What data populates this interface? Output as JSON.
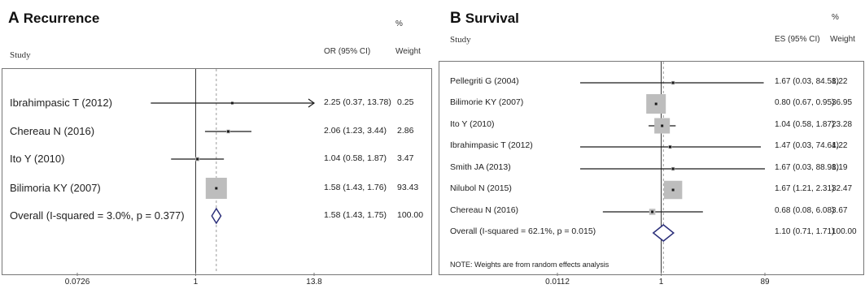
{
  "chart_data": [
    {
      "type": "forest",
      "panel_letter": "A",
      "title": "Recurrence",
      "percent_symbol": "%",
      "study_header": "Study",
      "effect_header": "OR (95% CI)",
      "weight_header": "Weight",
      "x_ticks": [
        "0.0726",
        "1",
        "13.8"
      ],
      "xlim": [
        0.0726,
        13.8
      ],
      "scale": "log",
      "null_value": 1,
      "overall_reference": 1.58,
      "studies": [
        {
          "name": "Ibrahimpasic T (2012)",
          "estimate": 2.25,
          "lower": 0.37,
          "upper": 13.78,
          "ci_text": "2.25 (0.37, 13.78)",
          "weight": "0.25",
          "weight_value": 0.25,
          "arrow_right": true
        },
        {
          "name": "Chereau N (2016)",
          "estimate": 2.06,
          "lower": 1.23,
          "upper": 3.44,
          "ci_text": "2.06 (1.23, 3.44)",
          "weight": "2.86",
          "weight_value": 2.86
        },
        {
          "name": "Ito Y (2010)",
          "estimate": 1.04,
          "lower": 0.58,
          "upper": 1.87,
          "ci_text": "1.04 (0.58, 1.87)",
          "weight": "3.47",
          "weight_value": 3.47
        },
        {
          "name": "Bilimoria KY (2007)",
          "estimate": 1.58,
          "lower": 1.43,
          "upper": 1.76,
          "ci_text": "1.58 (1.43, 1.76)",
          "weight": "93.43",
          "weight_value": 93.43
        }
      ],
      "overall": {
        "name": "Overall  (I-squared = 3.0%, p = 0.377)",
        "estimate": 1.58,
        "lower": 1.43,
        "upper": 1.75,
        "ci_text": "1.58 (1.43, 1.75)",
        "weight": "100.00"
      }
    },
    {
      "type": "forest",
      "panel_letter": "B",
      "title": "Survival",
      "percent_symbol": "%",
      "study_header": "Study",
      "effect_header": "ES (95% CI)",
      "weight_header": "Weight",
      "x_ticks": [
        "0.0112",
        "1",
        "89"
      ],
      "xlim": [
        0.0112,
        89
      ],
      "scale": "log",
      "null_value": 1,
      "overall_reference": 1.1,
      "studies": [
        {
          "name": "Pellegriti G (2004)",
          "estimate": 1.67,
          "lower": 0.03,
          "upper": 84.58,
          "ci_text": "1.67 (0.03, 84.58)",
          "weight": "1.22",
          "weight_value": 1.22
        },
        {
          "name": "Bilimorie KY (2007)",
          "estimate": 0.8,
          "lower": 0.67,
          "upper": 0.95,
          "ci_text": "0.80 (0.67, 0.95)",
          "weight": "36.95",
          "weight_value": 36.95
        },
        {
          "name": "Ito Y (2010)",
          "estimate": 1.04,
          "lower": 0.58,
          "upper": 1.87,
          "ci_text": "1.04 (0.58, 1.87)",
          "weight": "23.28",
          "weight_value": 23.28
        },
        {
          "name": "Ibrahimpasic T (2012)",
          "estimate": 1.47,
          "lower": 0.03,
          "upper": 74.64,
          "ci_text": "1.47 (0.03, 74.64)",
          "weight": "1.22",
          "weight_value": 1.22
        },
        {
          "name": "Smith JA (2013)",
          "estimate": 1.67,
          "lower": 0.03,
          "upper": 88.98,
          "ci_text": "1.67 (0.03, 88.98)",
          "weight": "1.19",
          "weight_value": 1.19
        },
        {
          "name": "Nilubol N (2015)",
          "estimate": 1.67,
          "lower": 1.21,
          "upper": 2.31,
          "ci_text": "1.67 (1.21, 2.31)",
          "weight": "32.47",
          "weight_value": 32.47
        },
        {
          "name": "Chereau N (2016)",
          "estimate": 0.68,
          "lower": 0.08,
          "upper": 6.08,
          "ci_text": "0.68 (0.08, 6.08)",
          "weight": "3.67",
          "weight_value": 3.67
        }
      ],
      "overall": {
        "name": "Overall  (I-squared = 62.1%, p = 0.015)",
        "estimate": 1.1,
        "lower": 0.71,
        "upper": 1.71,
        "ci_text": "1.10 (0.71, 1.71)",
        "weight": "100.00"
      },
      "note": "NOTE: Weights are from random effects analysis"
    }
  ],
  "colors": {
    "line": "#1a1a1a",
    "box": "#bdbdbd",
    "diamond": "#2b2f7a",
    "null_line": "#333333",
    "overall_line": "#9a9a9a",
    "frame": "#777777"
  }
}
